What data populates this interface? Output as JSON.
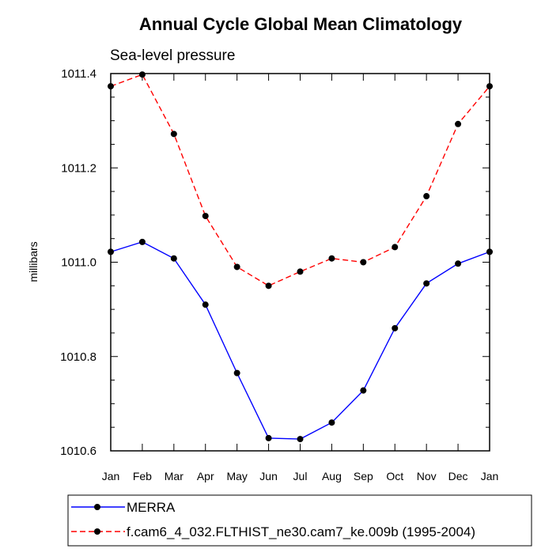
{
  "chart_data": {
    "type": "line",
    "title": "Annual Cycle Global Mean Climatology",
    "subtitle": "Sea-level pressure",
    "xlabel": "",
    "ylabel": "millibars",
    "categories": [
      "Jan",
      "Feb",
      "Mar",
      "Apr",
      "May",
      "Jun",
      "Jul",
      "Aug",
      "Sep",
      "Oct",
      "Nov",
      "Dec",
      "Jan"
    ],
    "ylim": [
      1010.6,
      1011.4
    ],
    "yticks": [
      1010.6,
      1010.8,
      1011.0,
      1011.2,
      1011.4
    ],
    "ytick_labels": [
      "1010.6",
      "1010.8",
      "1011.0",
      "1011.2",
      "1011.4"
    ],
    "grid": false,
    "legend_position": "bottom",
    "series": [
      {
        "name": "MERRA",
        "color": "#0000ff",
        "style": "solid",
        "marker": "dot",
        "values": [
          1011.022,
          1011.043,
          1011.008,
          1010.91,
          1010.765,
          1010.627,
          1010.625,
          1010.66,
          1010.728,
          1010.86,
          1010.955,
          1010.997,
          1011.022
        ]
      },
      {
        "name": "f.cam6_4_032.FLTHIST_ne30.cam7_ke.009b (1995-2004)",
        "color": "#ff0000",
        "style": "dashed",
        "marker": "dot",
        "values": [
          1011.373,
          1011.398,
          1011.272,
          1011.098,
          1010.99,
          1010.95,
          1010.98,
          1011.008,
          1011.0,
          1011.032,
          1011.14,
          1011.293,
          1011.373
        ]
      }
    ]
  }
}
